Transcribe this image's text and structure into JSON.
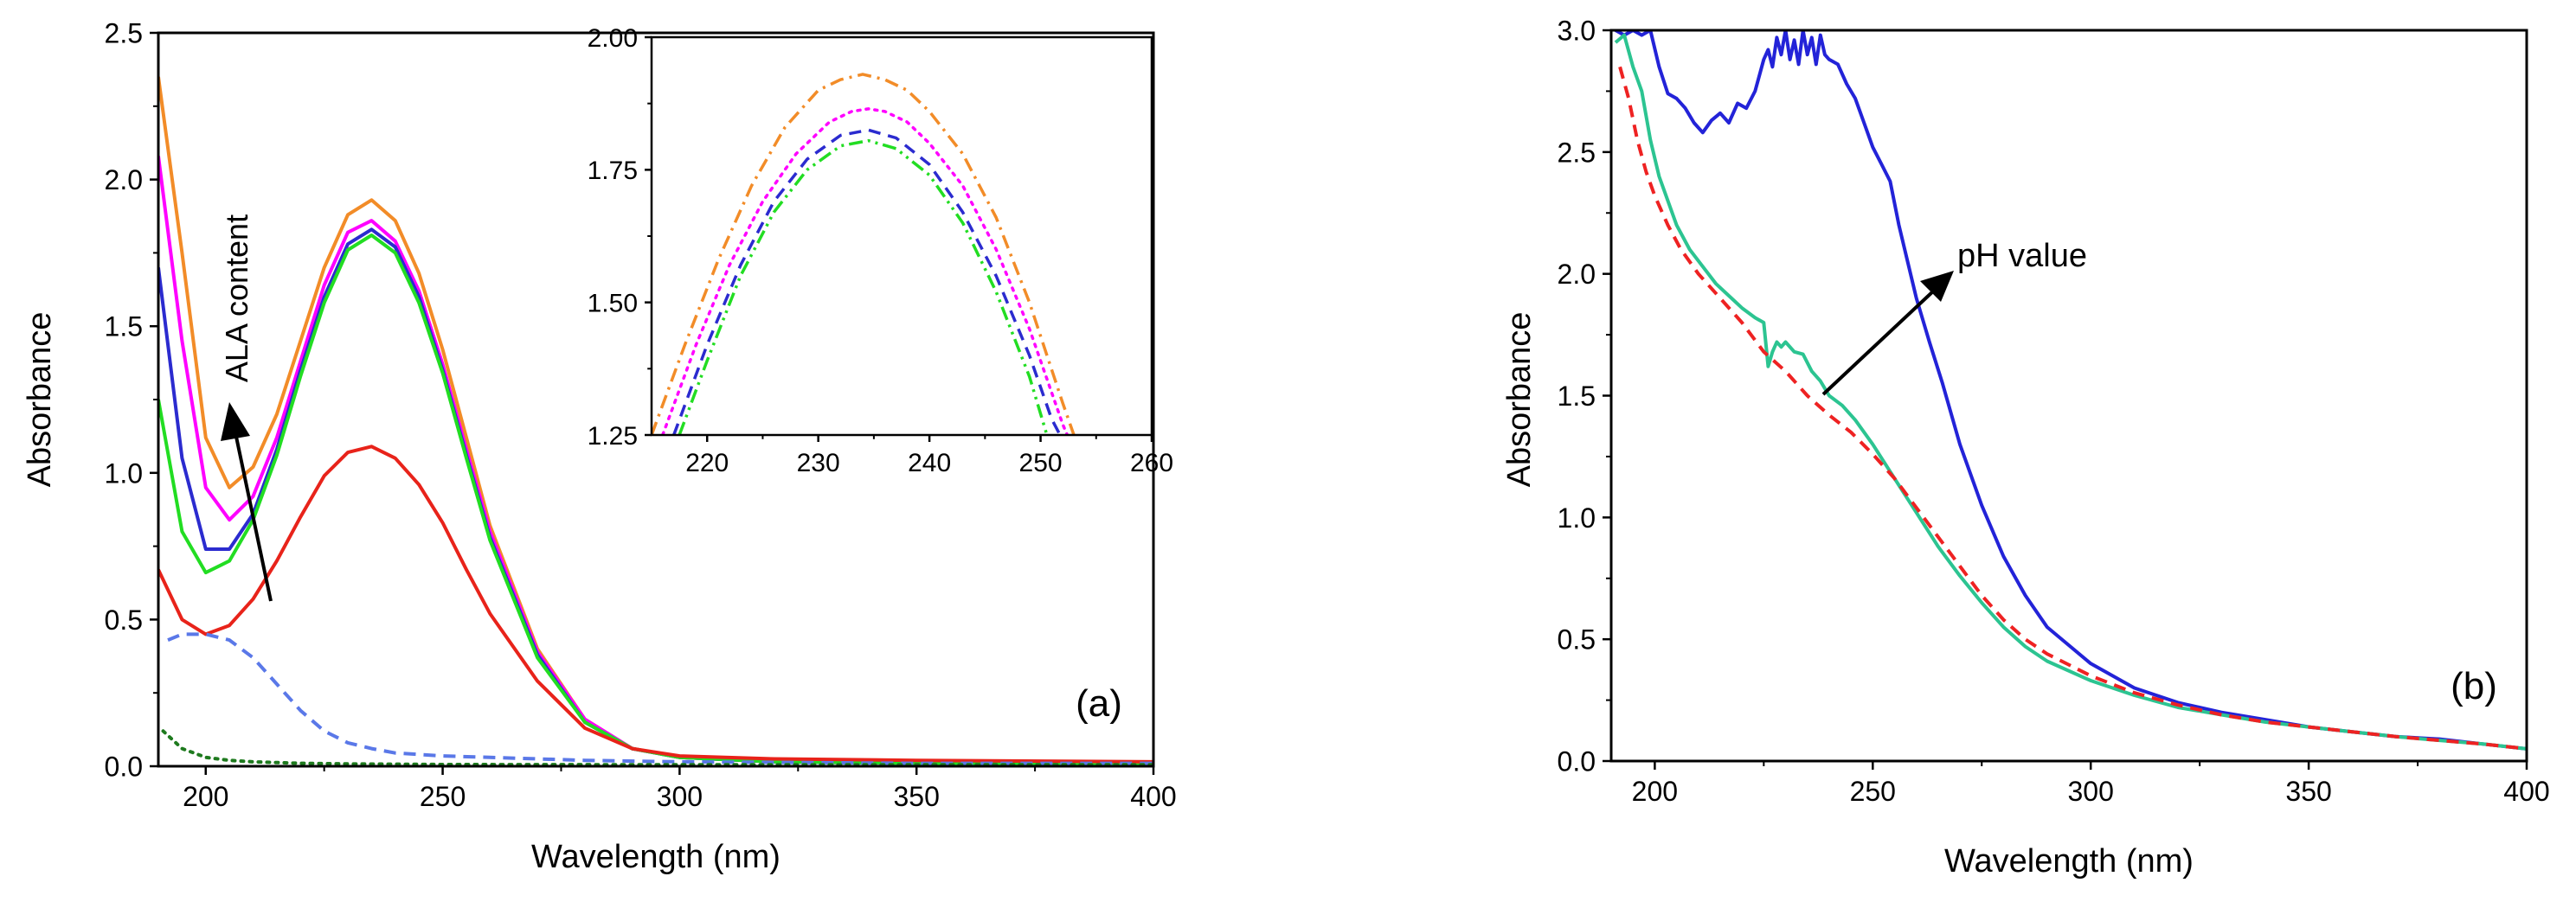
{
  "chart_data": [
    {
      "id": "a",
      "type": "line",
      "panel_label": "(a)",
      "xlabel": "Wavelength (nm)",
      "ylabel": "Absorbance",
      "xlim": [
        190,
        400
      ],
      "ylim": [
        0,
        2.5
      ],
      "xticks": [
        "200",
        "250",
        "300",
        "350",
        "400"
      ],
      "yticks": [
        "0.0",
        "0.5",
        "1.0",
        "1.5",
        "2.0",
        "2.5"
      ],
      "annotation": "ALA content",
      "series": [
        {
          "name": "orange",
          "color": "#F28C28",
          "style": "solid",
          "x": [
            190,
            195,
            200,
            205,
            210,
            215,
            220,
            225,
            230,
            235,
            240,
            245,
            250,
            255,
            260,
            270,
            280,
            290,
            300,
            320,
            350,
            400
          ],
          "y": [
            2.35,
            1.75,
            1.12,
            0.95,
            1.02,
            1.2,
            1.45,
            1.7,
            1.88,
            1.93,
            1.86,
            1.68,
            1.42,
            1.12,
            0.82,
            0.4,
            0.16,
            0.06,
            0.03,
            0.015,
            0.01,
            0.01
          ]
        },
        {
          "name": "magenta",
          "color": "#FF00FF",
          "style": "solid",
          "x": [
            190,
            195,
            200,
            205,
            210,
            215,
            220,
            225,
            230,
            235,
            240,
            245,
            250,
            255,
            260,
            270,
            280,
            290,
            300,
            320,
            350,
            400
          ],
          "y": [
            2.08,
            1.45,
            0.95,
            0.84,
            0.92,
            1.12,
            1.38,
            1.64,
            1.82,
            1.86,
            1.79,
            1.62,
            1.37,
            1.08,
            0.8,
            0.39,
            0.16,
            0.06,
            0.03,
            0.015,
            0.01,
            0.01
          ]
        },
        {
          "name": "blue",
          "color": "#2B2BCF",
          "style": "solid",
          "x": [
            190,
            195,
            200,
            205,
            210,
            215,
            220,
            225,
            230,
            235,
            240,
            245,
            250,
            255,
            260,
            270,
            280,
            290,
            300,
            320,
            350,
            400
          ],
          "y": [
            1.7,
            1.05,
            0.74,
            0.74,
            0.86,
            1.08,
            1.35,
            1.6,
            1.78,
            1.83,
            1.77,
            1.6,
            1.35,
            1.06,
            0.78,
            0.38,
            0.15,
            0.06,
            0.03,
            0.015,
            0.01,
            0.01
          ]
        },
        {
          "name": "green",
          "color": "#22DD22",
          "style": "solid",
          "x": [
            190,
            195,
            200,
            205,
            210,
            215,
            220,
            225,
            230,
            235,
            240,
            245,
            250,
            255,
            260,
            270,
            280,
            290,
            300,
            320,
            350,
            400
          ],
          "y": [
            1.25,
            0.8,
            0.66,
            0.7,
            0.84,
            1.06,
            1.33,
            1.58,
            1.76,
            1.81,
            1.75,
            1.58,
            1.34,
            1.05,
            0.77,
            0.37,
            0.15,
            0.06,
            0.03,
            0.015,
            0.01,
            0.01
          ]
        },
        {
          "name": "red",
          "color": "#E8231A",
          "style": "solid",
          "x": [
            190,
            195,
            200,
            205,
            210,
            215,
            220,
            225,
            230,
            235,
            240,
            245,
            250,
            255,
            260,
            270,
            280,
            290,
            300,
            320,
            350,
            400
          ],
          "y": [
            0.67,
            0.5,
            0.45,
            0.48,
            0.57,
            0.7,
            0.85,
            0.99,
            1.07,
            1.09,
            1.05,
            0.96,
            0.83,
            0.67,
            0.52,
            0.29,
            0.13,
            0.06,
            0.035,
            0.025,
            0.02,
            0.015
          ]
        },
        {
          "name": "light-blue-dashed",
          "color": "#5A78E8",
          "style": "dashed",
          "x": [
            192,
            195,
            200,
            205,
            210,
            215,
            220,
            225,
            230,
            235,
            240,
            250,
            260,
            270,
            280,
            300,
            350,
            400
          ],
          "y": [
            0.43,
            0.45,
            0.45,
            0.43,
            0.37,
            0.28,
            0.19,
            0.12,
            0.08,
            0.06,
            0.045,
            0.035,
            0.03,
            0.025,
            0.02,
            0.015,
            0.01,
            0.01
          ]
        },
        {
          "name": "dark-green-dotted",
          "color": "#1E7A1E",
          "style": "dotted",
          "x": [
            191,
            195,
            200,
            205,
            210,
            220,
            230,
            250,
            300,
            400
          ],
          "y": [
            0.12,
            0.06,
            0.03,
            0.02,
            0.015,
            0.01,
            0.008,
            0.006,
            0.005,
            0.005
          ]
        }
      ]
    },
    {
      "id": "a-inset",
      "type": "line",
      "xlim": [
        215,
        260
      ],
      "ylim": [
        1.25,
        2.0
      ],
      "xticks": [
        "220",
        "230",
        "240",
        "250",
        "260"
      ],
      "yticks": [
        "1.25",
        "1.50",
        "1.75",
        "2.00"
      ],
      "series": [
        {
          "name": "orange",
          "color": "#F28C28",
          "style": "dashdot",
          "x": [
            215,
            218,
            221,
            224,
            227,
            230,
            232,
            234,
            236,
            238,
            240,
            243,
            246,
            249,
            252,
            253.5
          ],
          "y": [
            1.25,
            1.42,
            1.58,
            1.72,
            1.83,
            1.9,
            1.92,
            1.93,
            1.92,
            1.9,
            1.86,
            1.78,
            1.66,
            1.5,
            1.31,
            1.22
          ]
        },
        {
          "name": "magenta",
          "color": "#FF00FF",
          "style": "dotted",
          "x": [
            216,
            219,
            222,
            225,
            228,
            231,
            233,
            234.5,
            236,
            238,
            240,
            243,
            246,
            249,
            252,
            253
          ],
          "y": [
            1.25,
            1.42,
            1.57,
            1.69,
            1.78,
            1.84,
            1.86,
            1.865,
            1.86,
            1.84,
            1.8,
            1.72,
            1.6,
            1.45,
            1.27,
            1.22
          ]
        },
        {
          "name": "blue",
          "color": "#2B2BCF",
          "style": "dashed",
          "x": [
            217,
            220,
            223,
            226,
            229,
            232,
            234.5,
            237,
            240,
            243,
            246,
            249,
            251,
            252.5
          ],
          "y": [
            1.25,
            1.42,
            1.57,
            1.69,
            1.77,
            1.815,
            1.825,
            1.81,
            1.76,
            1.67,
            1.55,
            1.4,
            1.28,
            1.22
          ]
        },
        {
          "name": "green",
          "color": "#22DD22",
          "style": "dashdotdot",
          "x": [
            217.5,
            220,
            223,
            226,
            229,
            232,
            234.5,
            237,
            240,
            243,
            246,
            249,
            251
          ],
          "y": [
            1.25,
            1.39,
            1.55,
            1.67,
            1.75,
            1.795,
            1.805,
            1.79,
            1.74,
            1.65,
            1.52,
            1.36,
            1.22
          ]
        }
      ]
    },
    {
      "id": "b",
      "type": "line",
      "panel_label": "(b)",
      "xlabel": "Wavelength (nm)",
      "ylabel": "Absorbance",
      "xlim": [
        190,
        400
      ],
      "ylim": [
        0,
        3.0
      ],
      "xticks": [
        "200",
        "250",
        "300",
        "350",
        "400"
      ],
      "yticks": [
        "0.0",
        "0.5",
        "1.0",
        "1.5",
        "2.0",
        "2.5",
        "3.0"
      ],
      "annotation": "pH value",
      "series": [
        {
          "name": "blue",
          "color": "#2323D8",
          "style": "solid",
          "x": [
            191,
            193,
            195,
            197,
            199,
            201,
            203,
            205,
            207,
            209,
            211,
            213,
            215,
            217,
            219,
            221,
            223,
            225,
            226,
            227,
            228,
            229,
            230,
            231,
            232,
            233,
            234,
            235,
            236,
            237,
            238,
            239,
            240,
            242,
            244,
            246,
            248,
            250,
            252,
            254,
            256,
            258,
            260,
            263,
            266,
            270,
            275,
            280,
            285,
            290,
            300,
            310,
            320,
            330,
            340,
            350,
            360,
            370,
            380,
            390,
            400
          ],
          "y": [
            3.0,
            2.98,
            3.0,
            2.98,
            3.0,
            2.85,
            2.74,
            2.72,
            2.68,
            2.62,
            2.58,
            2.63,
            2.66,
            2.62,
            2.7,
            2.68,
            2.75,
            2.88,
            2.92,
            2.85,
            2.97,
            2.9,
            3.0,
            2.88,
            2.96,
            2.86,
            3.0,
            2.9,
            2.97,
            2.86,
            2.98,
            2.9,
            2.88,
            2.86,
            2.78,
            2.72,
            2.62,
            2.52,
            2.45,
            2.38,
            2.2,
            2.05,
            1.9,
            1.72,
            1.55,
            1.3,
            1.05,
            0.84,
            0.68,
            0.55,
            0.4,
            0.3,
            0.24,
            0.2,
            0.17,
            0.14,
            0.12,
            0.1,
            0.09,
            0.07,
            0.05
          ]
        },
        {
          "name": "teal",
          "color": "#2CC491",
          "style": "solid",
          "x": [
            191,
            193,
            195,
            197,
            199,
            201,
            203,
            205,
            208,
            211,
            214,
            217,
            220,
            223,
            225,
            226,
            227,
            228,
            229,
            230,
            232,
            234,
            236,
            238,
            240,
            243,
            246,
            250,
            255,
            260,
            265,
            270,
            275,
            280,
            285,
            290,
            300,
            310,
            320,
            330,
            340,
            350,
            360,
            370,
            380,
            390,
            400
          ],
          "y": [
            2.95,
            2.98,
            2.85,
            2.75,
            2.55,
            2.4,
            2.3,
            2.2,
            2.1,
            2.03,
            1.96,
            1.91,
            1.86,
            1.82,
            1.8,
            1.62,
            1.68,
            1.72,
            1.7,
            1.72,
            1.68,
            1.67,
            1.6,
            1.56,
            1.5,
            1.46,
            1.4,
            1.3,
            1.16,
            1.02,
            0.88,
            0.76,
            0.65,
            0.55,
            0.47,
            0.41,
            0.33,
            0.27,
            0.22,
            0.19,
            0.16,
            0.14,
            0.12,
            0.1,
            0.085,
            0.07,
            0.05
          ]
        },
        {
          "name": "red-dashed",
          "color": "#EE2222",
          "style": "dashed",
          "x": [
            192,
            194,
            196,
            198,
            200,
            203,
            206,
            210,
            215,
            220,
            225,
            230,
            235,
            240,
            245,
            250,
            255,
            260,
            265,
            270,
            275,
            280,
            285,
            290,
            300,
            310,
            320,
            330,
            340,
            350,
            360,
            370,
            380,
            390,
            400
          ],
          "y": [
            2.85,
            2.72,
            2.55,
            2.42,
            2.32,
            2.2,
            2.1,
            2.0,
            1.9,
            1.8,
            1.68,
            1.6,
            1.5,
            1.42,
            1.35,
            1.26,
            1.16,
            1.04,
            0.92,
            0.8,
            0.68,
            0.58,
            0.5,
            0.44,
            0.35,
            0.28,
            0.23,
            0.19,
            0.16,
            0.14,
            0.12,
            0.1,
            0.085,
            0.07,
            0.05
          ]
        }
      ]
    }
  ]
}
